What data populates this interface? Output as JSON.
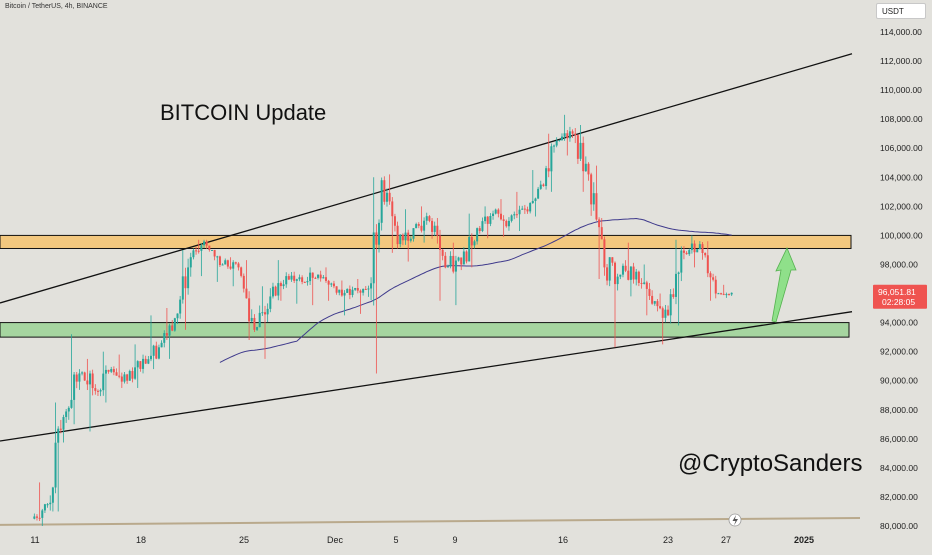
{
  "chart_data": {
    "type": "candlestick",
    "symbol_line": "Bitcoin / TetherUS, 4h, BINANCE",
    "currency": "USDT",
    "title": "BITCOIN Update",
    "watermark": "@CryptoSanders",
    "price_label": "96,051.81",
    "countdown": "02:28:05",
    "x_tick_labels": [
      "11",
      "18",
      "25",
      "Dec",
      "5",
      "9",
      "16",
      "23",
      "27",
      "2025"
    ],
    "y_tick_labels": [
      "80,000.00",
      "82,000.00",
      "84,000.00",
      "86,000.00",
      "88,000.00",
      "90,000.00",
      "92,000.00",
      "94,000.00",
      "96,000.00",
      "98,000.00",
      "100,000.00",
      "102,000.00",
      "104,000.00",
      "106,000.00",
      "108,000.00",
      "110,000.00",
      "112,000.00",
      "114,000.00"
    ],
    "ylim": [
      80000,
      114500
    ],
    "resistance_zone": [
      99100,
      100000
    ],
    "support_zone": [
      93000,
      94000
    ],
    "daily_candles": [
      [
        80500,
        81500,
        80000,
        83000
      ],
      [
        81500,
        87500,
        81000,
        88500
      ],
      [
        87500,
        90500,
        87000,
        93200
      ],
      [
        90500,
        89300,
        86500,
        91500
      ],
      [
        89300,
        90800,
        88500,
        92000
      ],
      [
        90800,
        90000,
        89500,
        91800
      ],
      [
        90000,
        91500,
        89500,
        92500
      ],
      [
        91500,
        92300,
        90800,
        94500
      ],
      [
        92300,
        94300,
        91500,
        95000
      ],
      [
        94300,
        98500,
        93500,
        99000
      ],
      [
        98500,
        99300,
        97200,
        99700
      ],
      [
        99300,
        98000,
        96800,
        99000
      ],
      [
        98000,
        97800,
        96500,
        98500
      ],
      [
        97800,
        93500,
        92800,
        98300
      ],
      [
        93500,
        95800,
        91500,
        96500
      ],
      [
        95800,
        97200,
        95500,
        98300
      ],
      [
        97200,
        96800,
        95300,
        97500
      ],
      [
        96800,
        97300,
        95200,
        97800
      ],
      [
        97300,
        96500,
        95500,
        97800
      ],
      [
        96500,
        95900,
        94500,
        96900
      ],
      [
        95900,
        96300,
        94600,
        97000
      ],
      [
        96300,
        103800,
        90500,
        104000
      ],
      [
        103800,
        99400,
        98800,
        104200
      ],
      [
        99400,
        100500,
        98200,
        101800
      ],
      [
        100500,
        101000,
        99500,
        102000
      ],
      [
        101000,
        97800,
        95500,
        101200
      ],
      [
        97800,
        98000,
        95200,
        99500
      ],
      [
        98000,
        100500,
        97800,
        101500
      ],
      [
        100500,
        101500,
        99800,
        102000
      ],
      [
        101500,
        101000,
        99900,
        102500
      ],
      [
        101000,
        101800,
        100300,
        103000
      ],
      [
        101800,
        103500,
        101300,
        104500
      ],
      [
        103500,
        106500,
        103000,
        107000
      ],
      [
        106500,
        107000,
        105500,
        108300
      ],
      [
        107000,
        104200,
        103000,
        107600
      ],
      [
        104200,
        97800,
        97000,
        104800
      ],
      [
        97800,
        97300,
        92300,
        98500
      ],
      [
        97300,
        97500,
        95800,
        99500
      ],
      [
        97500,
        95300,
        94500,
        98000
      ],
      [
        95300,
        94500,
        92500,
        96000
      ],
      [
        94500,
        98800,
        93800,
        99700
      ],
      [
        98800,
        99400,
        97800,
        100000
      ],
      [
        99400,
        96000,
        95500,
        99600
      ],
      [
        96000,
        96050,
        95700,
        96600
      ]
    ]
  },
  "colors": {
    "background": "#e2e1dc",
    "up": "#26a69a",
    "down": "#ef5350",
    "resistance_fill": "#f3c87f",
    "support_fill": "#a6d5a0",
    "ma_line": "#3f3a8c",
    "trend_line": "#111111",
    "arrow_fill": "#8fe08a",
    "price_badge": "#ef5350"
  },
  "icons": {
    "lightning": "lightning-icon"
  }
}
